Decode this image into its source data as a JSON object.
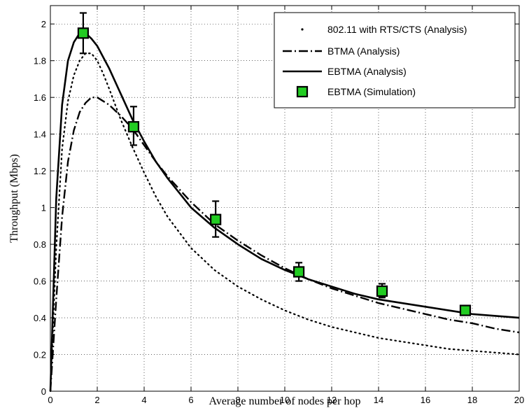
{
  "chart_data": {
    "type": "line",
    "xlabel": "Average number of nodes per hop",
    "ylabel": "Throughput (Mbps)",
    "xlim": [
      0,
      20
    ],
    "ylim": [
      0,
      2.1
    ],
    "x_ticks": [
      0,
      2,
      4,
      6,
      8,
      10,
      12,
      14,
      16,
      18,
      20
    ],
    "y_ticks": [
      0,
      0.2,
      0.4,
      0.6,
      0.8,
      1,
      1.2,
      1.4,
      1.6,
      1.8,
      2
    ],
    "x_tick_labels": [
      "0",
      "2",
      "4",
      "6",
      "8",
      "10",
      "12",
      "14",
      "16",
      "18",
      "20"
    ],
    "y_tick_labels": [
      "0",
      "0.2",
      "0.4",
      "0.6",
      "0.8",
      "1",
      "1.2",
      "1.4",
      "1.6",
      "1.8",
      "2"
    ],
    "grid": true,
    "legend_position": "top-right",
    "series": [
      {
        "name": "802.11 with RTS/CTS (Analysis)",
        "style": "dotted",
        "color": "#000000",
        "x": [
          0,
          0.25,
          0.5,
          0.75,
          1.0,
          1.25,
          1.5,
          1.75,
          2.0,
          2.25,
          2.5,
          3.0,
          3.5,
          4.0,
          4.5,
          5.0,
          6.0,
          7.0,
          8.0,
          9.0,
          10.0,
          11.0,
          12.0,
          13.0,
          14.0,
          15.0,
          16.0,
          17.0,
          18.0,
          19.0,
          20.0
        ],
        "y": [
          0,
          0.78,
          1.32,
          1.58,
          1.72,
          1.8,
          1.84,
          1.84,
          1.8,
          1.73,
          1.65,
          1.48,
          1.33,
          1.19,
          1.06,
          0.95,
          0.78,
          0.66,
          0.57,
          0.5,
          0.44,
          0.39,
          0.35,
          0.32,
          0.29,
          0.27,
          0.25,
          0.23,
          0.22,
          0.21,
          0.2
        ]
      },
      {
        "name": "BTMA (Analysis)",
        "style": "dashdot",
        "color": "#000000",
        "x": [
          0,
          0.25,
          0.5,
          0.75,
          1.0,
          1.25,
          1.5,
          1.75,
          2.0,
          2.25,
          2.5,
          3.0,
          3.5,
          4.0,
          4.5,
          5.0,
          6.0,
          7.0,
          8.0,
          9.0,
          10.0,
          11.0,
          12.0,
          13.0,
          14.0,
          15.0,
          16.0,
          17.0,
          18.0,
          19.0,
          20.0
        ],
        "y": [
          0,
          0.5,
          0.95,
          1.25,
          1.42,
          1.52,
          1.57,
          1.6,
          1.6,
          1.58,
          1.56,
          1.5,
          1.43,
          1.34,
          1.25,
          1.17,
          1.03,
          0.91,
          0.82,
          0.74,
          0.67,
          0.61,
          0.56,
          0.52,
          0.48,
          0.45,
          0.42,
          0.39,
          0.37,
          0.34,
          0.32
        ]
      },
      {
        "name": "EBTMA (Analysis)",
        "style": "solid",
        "color": "#000000",
        "x": [
          0,
          0.25,
          0.5,
          0.75,
          1.0,
          1.25,
          1.5,
          1.75,
          2.0,
          2.25,
          2.5,
          3.0,
          3.5,
          4.0,
          4.5,
          5.0,
          6.0,
          7.0,
          8.0,
          9.0,
          10.0,
          11.0,
          12.0,
          13.0,
          14.0,
          15.0,
          16.0,
          17.0,
          18.0,
          19.0,
          20.0
        ],
        "y": [
          0,
          1.05,
          1.56,
          1.8,
          1.9,
          1.95,
          1.95,
          1.92,
          1.88,
          1.82,
          1.76,
          1.62,
          1.48,
          1.36,
          1.25,
          1.16,
          1.0,
          0.89,
          0.8,
          0.72,
          0.66,
          0.61,
          0.57,
          0.53,
          0.5,
          0.48,
          0.46,
          0.44,
          0.42,
          0.41,
          0.4
        ]
      },
      {
        "name": "EBTMA (Simulation)",
        "style": "markers",
        "marker": "square",
        "color": "#22cc22",
        "x": [
          1.4,
          3.55,
          7.05,
          10.6,
          14.15,
          17.7
        ],
        "y": [
          1.95,
          1.44,
          0.935,
          0.65,
          0.545,
          0.44
        ],
        "err_low": [
          1.84,
          1.34,
          0.84,
          0.6,
          0.51,
          0.42
        ],
        "err_high": [
          2.06,
          1.55,
          1.035,
          0.7,
          0.585,
          0.46
        ]
      }
    ]
  }
}
